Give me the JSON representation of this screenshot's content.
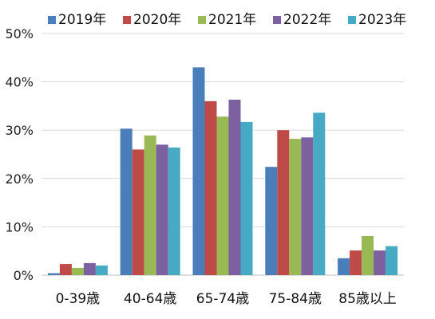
{
  "chart_data": {
    "type": "bar",
    "categories": [
      "0-39歳",
      "40-64歳",
      "65-74歳",
      "75-84歳",
      "85歳以上"
    ],
    "series": [
      {
        "name": "2019年",
        "color": "#4A7EBB",
        "values": [
          0.4,
          30.3,
          43.0,
          22.4,
          3.5
        ]
      },
      {
        "name": "2020年",
        "color": "#BE4B48",
        "values": [
          2.3,
          26.0,
          36.0,
          30.0,
          5.1
        ]
      },
      {
        "name": "2021年",
        "color": "#98B954",
        "values": [
          1.5,
          28.9,
          32.8,
          28.2,
          8.1
        ]
      },
      {
        "name": "2022年",
        "color": "#7D60A0",
        "values": [
          2.5,
          27.0,
          36.3,
          28.5,
          5.1
        ]
      },
      {
        "name": "2023年",
        "color": "#46AAC5",
        "values": [
          2.0,
          26.4,
          31.7,
          33.6,
          6.0
        ]
      }
    ],
    "ylim": [
      0,
      50
    ],
    "yticks": [
      "0%",
      "10%",
      "20%",
      "30%",
      "40%",
      "50%"
    ],
    "grid": true,
    "legend": "top"
  }
}
